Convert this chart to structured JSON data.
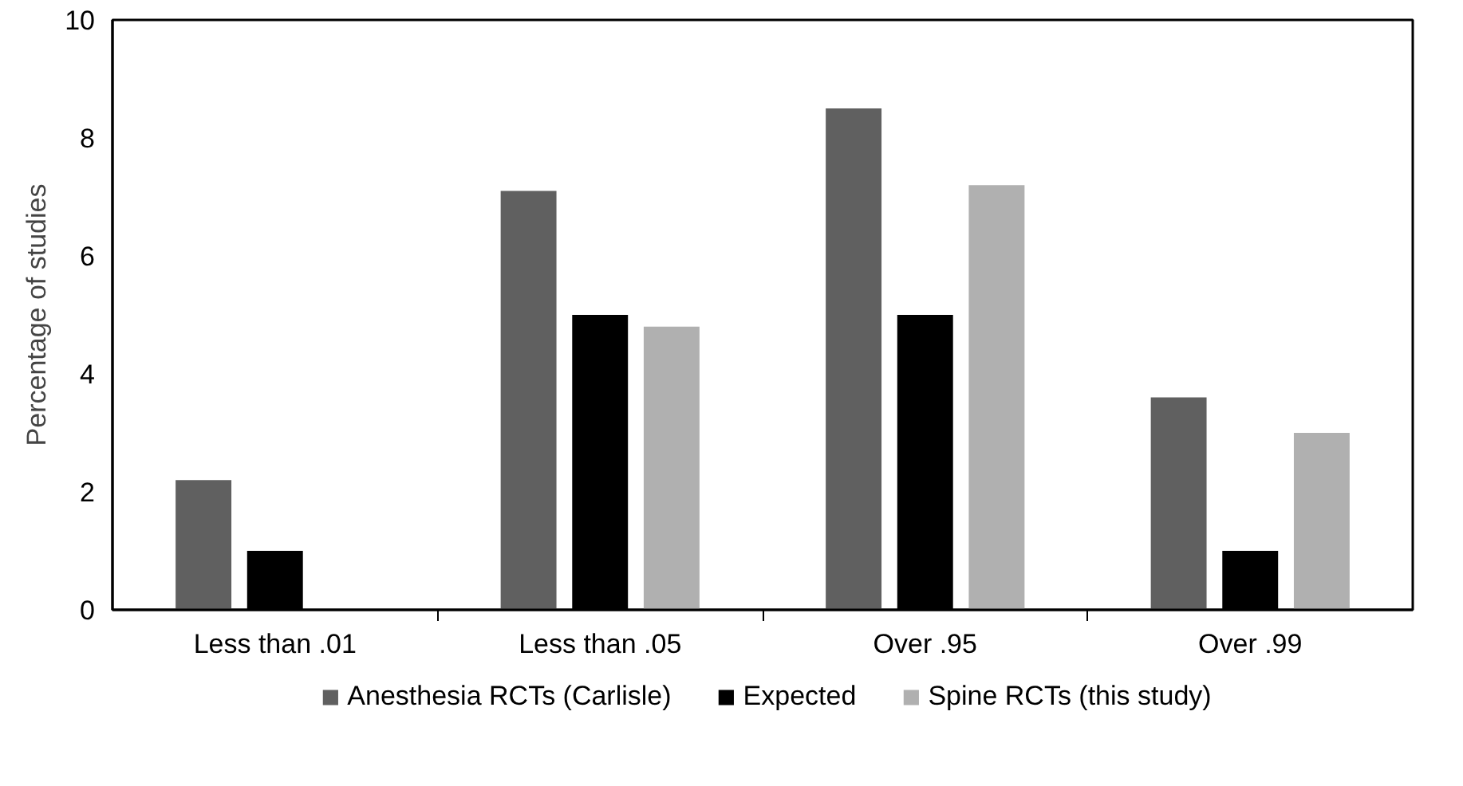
{
  "chart_data": {
    "type": "bar",
    "ylabel": "Percentage of studies",
    "categories": [
      "Less than .01",
      "Less than .05",
      "Over .95",
      "Over .99"
    ],
    "series": [
      {
        "name": "Anesthesia RCTs (Carlisle)",
        "color": "#606060",
        "values": [
          2.2,
          7.1,
          8.5,
          3.6
        ]
      },
      {
        "name": "Expected",
        "color": "#000000",
        "values": [
          1.0,
          5.0,
          5.0,
          1.0
        ]
      },
      {
        "name": "Spine RCTs (this study)",
        "color": "#b0b0b0",
        "values": [
          0,
          4.8,
          7.2,
          3.0
        ]
      }
    ],
    "ylim": [
      0,
      10
    ],
    "yticks": [
      0,
      2,
      4,
      6,
      8,
      10
    ],
    "grid": false,
    "legend": "bottom"
  }
}
